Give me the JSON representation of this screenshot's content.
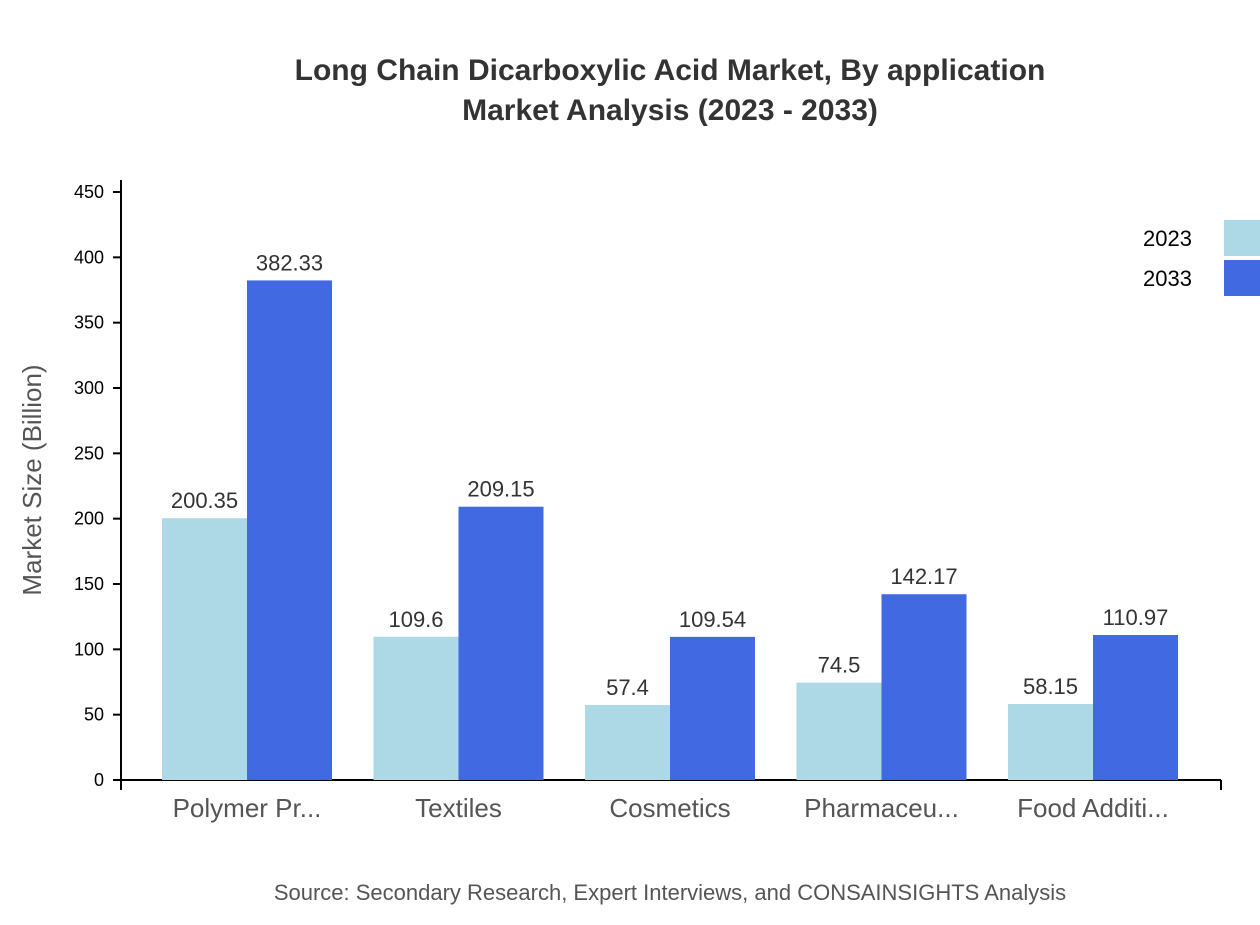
{
  "chart_data": {
    "type": "bar",
    "title": "Long Chain Dicarboxylic Acid Market, By application",
    "subtitle": "Market Analysis (2023 - 2033)",
    "xlabel": "",
    "ylabel": "Market Size (Billion)",
    "ylim": [
      0,
      450
    ],
    "yticks": [
      0,
      50,
      100,
      150,
      200,
      250,
      300,
      350,
      400,
      450
    ],
    "categories": [
      "Polymer Pr...",
      "Textiles",
      "Cosmetics",
      "Pharmaceu...",
      "Food Additi..."
    ],
    "series": [
      {
        "name": "2023",
        "color": "#ADD8E6",
        "values": [
          200.35,
          109.6,
          57.4,
          74.5,
          58.15
        ]
      },
      {
        "name": "2033",
        "color": "#4169E1",
        "values": [
          382.33,
          209.15,
          109.54,
          142.17,
          110.97
        ]
      }
    ],
    "legend_position": "top-right",
    "grid": false,
    "source": "Source: Secondary Research, Expert Interviews, and CONSAINSIGHTS Analysis"
  }
}
